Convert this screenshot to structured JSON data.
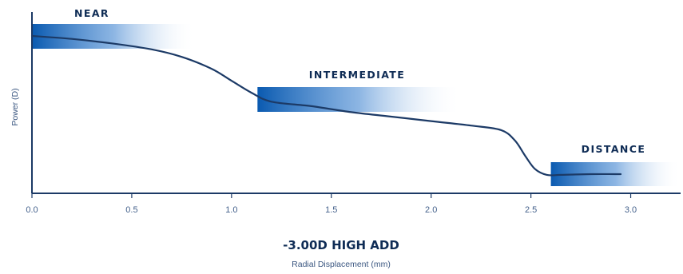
{
  "chart_data": {
    "type": "line",
    "title": "-3.00D HIGH ADD",
    "xlabel": "Radial Displacement (mm)",
    "ylabel": "Power (D)",
    "xlim": [
      0,
      3.25
    ],
    "x_ticks": [
      {
        "value": 0.0,
        "label": "0.0"
      },
      {
        "value": 0.5,
        "label": "0.5"
      },
      {
        "value": 1.0,
        "label": "1.0"
      },
      {
        "value": 1.5,
        "label": "1.5"
      },
      {
        "value": 2.0,
        "label": "2.0"
      },
      {
        "value": 2.5,
        "label": "2.5"
      },
      {
        "value": 3.0,
        "label": "3.0"
      }
    ],
    "y_ticks_shown": false,
    "grid": false,
    "zones": [
      {
        "label": "NEAR",
        "x_start": 0.0,
        "x_end": 0.82
      },
      {
        "label": "INTERMEDIATE",
        "x_start": 1.13,
        "x_end": 2.15
      },
      {
        "label": "DISTANCE",
        "x_start": 2.6,
        "x_end": 3.25
      }
    ],
    "series": [
      {
        "color": "#1c3a66",
        "points": [
          [
            0.0,
            1.0
          ],
          [
            0.2,
            0.98
          ],
          [
            0.4,
            0.95
          ],
          [
            0.6,
            0.91
          ],
          [
            0.75,
            0.86
          ],
          [
            0.9,
            0.78
          ],
          [
            1.0,
            0.7
          ],
          [
            1.1,
            0.62
          ],
          [
            1.2,
            0.56
          ],
          [
            1.4,
            0.53
          ],
          [
            1.6,
            0.49
          ],
          [
            1.8,
            0.46
          ],
          [
            2.0,
            0.43
          ],
          [
            2.2,
            0.4
          ],
          [
            2.35,
            0.37
          ],
          [
            2.42,
            0.3
          ],
          [
            2.47,
            0.2
          ],
          [
            2.52,
            0.11
          ],
          [
            2.58,
            0.07
          ],
          [
            2.65,
            0.07
          ],
          [
            2.8,
            0.075
          ],
          [
            2.95,
            0.075
          ]
        ]
      }
    ],
    "colors": {
      "band": "#0a5ab0",
      "axis": "#1c3a66",
      "line": "#1c3a66"
    }
  }
}
